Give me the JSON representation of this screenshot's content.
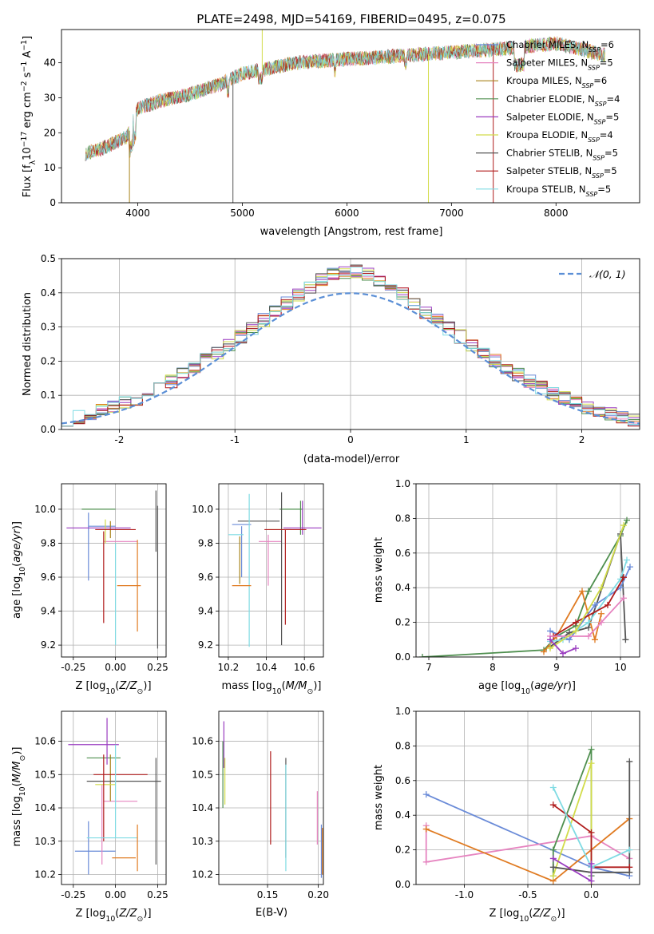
{
  "title": "PLATE=2498, MJD=54169, FIBERID=0495, z=0.075",
  "colors": {
    "Chabrier MILES": "#6a8bd8",
    "Salpeter MILES": "#e684c0",
    "Kroupa MILES": "#a8831a",
    "Chabrier ELODIE": "#4f8f4f",
    "Salpeter ELODIE": "#9a3cc0",
    "Kroupa ELODIE": "#d2dc4a",
    "Chabrier STELIB": "#555555",
    "Salpeter STELIB": "#b01c1c",
    "Kroupa STELIB": "#7fdbe3",
    "orange": "#e07b22",
    "gaussian": "#5b8fd6"
  },
  "chart_data": [
    {
      "id": "spectrum",
      "type": "line",
      "xlabel": "wavelength [Angstrom, rest frame]",
      "ylabel": "Flux [fλ10⁻¹⁷ erg cm⁻² s⁻¹ A⁻¹]",
      "xlim": [
        3270,
        8800
      ],
      "ylim": [
        0,
        49.5
      ],
      "xticks": [
        4000,
        5000,
        6000,
        7000,
        8000
      ],
      "yticks": [
        0,
        10,
        20,
        30,
        40
      ],
      "legend": [
        {
          "label": "Chabrier MILES, N",
          "sub": "SSP",
          "tail": "=6",
          "color": "#6a8bd8"
        },
        {
          "label": "Salpeter MILES, N",
          "sub": "SSP",
          "tail": "=5",
          "color": "#e684c0"
        },
        {
          "label": "Kroupa MILES, N",
          "sub": "SSP",
          "tail": "=6",
          "color": "#a8831a"
        },
        {
          "label": "Chabrier ELODIE, N",
          "sub": "SSP",
          "tail": "=4",
          "color": "#4f8f4f"
        },
        {
          "label": "Salpeter ELODIE, N",
          "sub": "SSP",
          "tail": "=5",
          "color": "#9a3cc0"
        },
        {
          "label": "Kroupa ELODIE, N",
          "sub": "SSP",
          "tail": "=4",
          "color": "#d2dc4a"
        },
        {
          "label": "Chabrier STELIB, N",
          "sub": "SSP",
          "tail": "=5",
          "color": "#555555"
        },
        {
          "label": "Salpeter STELIB, N",
          "sub": "SSP",
          "tail": "=5",
          "color": "#b01c1c"
        },
        {
          "label": "Kroupa STELIB, N",
          "sub": "SSP",
          "tail": "=5",
          "color": "#7fdbe3"
        }
      ],
      "continuum": [
        [
          3500,
          14
        ],
        [
          3700,
          16
        ],
        [
          3900,
          19
        ],
        [
          4000,
          27
        ],
        [
          4200,
          29
        ],
        [
          4500,
          31
        ],
        [
          4800,
          34
        ],
        [
          5000,
          37
        ],
        [
          5200,
          38
        ],
        [
          5500,
          40
        ],
        [
          6000,
          41
        ],
        [
          6500,
          42
        ],
        [
          7000,
          43
        ],
        [
          7500,
          44
        ],
        [
          8000,
          45.5
        ],
        [
          8500,
          42
        ]
      ],
      "spikes": [
        [
          3920,
          0
        ],
        [
          4910,
          0
        ],
        [
          5190,
          49.5
        ],
        [
          6780,
          0
        ],
        [
          7400,
          0
        ]
      ]
    },
    {
      "id": "residuals",
      "type": "line",
      "xlabel": "(data-model)/error",
      "ylabel": "Normed distribution",
      "xlim": [
        -2.5,
        2.5
      ],
      "ylim": [
        0,
        0.5
      ],
      "xticks": [
        -2,
        -1,
        0,
        1,
        2
      ],
      "yticks": [
        0.0,
        0.1,
        0.2,
        0.3,
        0.4,
        0.5
      ],
      "legend": "N(0,1)"
    },
    {
      "id": "age_vs_Z",
      "type": "scatter",
      "xlabel": "Z [log10(Z/Z☉)]",
      "ylabel": "age  [log10(age/yr)]",
      "xlim": [
        -0.32,
        0.3
      ],
      "ylim": [
        9.13,
        10.15
      ],
      "xticks": [
        -0.25,
        0.0,
        0.25
      ],
      "yticks": [
        9.2,
        9.4,
        9.6,
        9.8,
        10.0
      ],
      "points": [
        {
          "c": "Chabrier MILES",
          "x": -0.08,
          "y": 9.9,
          "xe": 0.08,
          "ye": 0.0
        },
        {
          "c": "Chabrier MILES",
          "x": -0.16,
          "y": 9.78,
          "xe": 0.0,
          "ye": 0.2
        },
        {
          "c": "Salpeter MILES",
          "x": 0.03,
          "y": 9.81,
          "xe": 0.1,
          "ye": 0.0
        },
        {
          "c": "Kroupa MILES",
          "x": -0.03,
          "y": 9.88,
          "xe": 0.0,
          "ye": 0.05
        },
        {
          "c": "Chabrier ELODIE",
          "x": -0.1,
          "y": 10.0,
          "xe": 0.1,
          "ye": 0.0
        },
        {
          "c": "Salpeter ELODIE",
          "x": -0.1,
          "y": 9.89,
          "xe": 0.19,
          "ye": 0.0
        },
        {
          "c": "Kroupa ELODIE",
          "x": -0.06,
          "y": 9.87,
          "xe": 0.0,
          "ye": 0.07
        },
        {
          "c": "Chabrier STELIB",
          "x": 0.24,
          "y": 9.93,
          "xe": 0.0,
          "ye": 0.18
        },
        {
          "c": "Chabrier STELIB",
          "x": 0.25,
          "y": 9.6,
          "xe": 0.0,
          "ye": 0.42
        },
        {
          "c": "Salpeter STELIB",
          "x": -0.07,
          "y": 9.6,
          "xe": 0.0,
          "ye": 0.27
        },
        {
          "c": "Salpeter STELIB",
          "x": 0.0,
          "y": 9.88,
          "xe": 0.12,
          "ye": 0.0
        },
        {
          "c": "Kroupa STELIB",
          "x": 0.0,
          "y": 9.5,
          "xe": 0.0,
          "ye": 0.3
        },
        {
          "c": "orange",
          "x": 0.13,
          "y": 9.55,
          "xe": 0.0,
          "ye": 0.27
        },
        {
          "c": "orange",
          "x": 0.08,
          "y": 9.55,
          "xe": 0.07,
          "ye": 0.0
        }
      ]
    },
    {
      "id": "age_vs_mass",
      "type": "scatter",
      "xlabel": "mass [log10(M/M☉)]",
      "xlim": [
        10.15,
        10.7
      ],
      "ylim": [
        9.13,
        10.15
      ],
      "xticks": [
        10.2,
        10.4,
        10.6
      ],
      "yticks": [
        9.2,
        9.4,
        9.6,
        9.8,
        10.0
      ],
      "points": [
        {
          "c": "Chabrier MILES",
          "x": 10.27,
          "y": 9.91,
          "xe": 0.05,
          "ye": 0.0
        },
        {
          "c": "Chabrier MILES",
          "x": 10.27,
          "y": 9.75,
          "xe": 0.0,
          "ye": 0.15
        },
        {
          "c": "Salpeter MILES",
          "x": 10.42,
          "y": 9.81,
          "xe": 0.06,
          "ye": 0.0
        },
        {
          "c": "Salpeter MILES",
          "x": 10.41,
          "y": 9.7,
          "xe": 0.0,
          "ye": 0.15
        },
        {
          "c": "Kroupa MILES",
          "x": 10.26,
          "y": 9.7,
          "xe": 0.0,
          "ye": 0.14
        },
        {
          "c": "Chabrier ELODIE",
          "x": 10.53,
          "y": 10.0,
          "xe": 0.06,
          "ye": 0.0
        },
        {
          "c": "Chabrier ELODIE",
          "x": 10.58,
          "y": 9.95,
          "xe": 0.0,
          "ye": 0.1
        },
        {
          "c": "Salpeter ELODIE",
          "x": 10.59,
          "y": 9.89,
          "xe": 0.1,
          "ye": 0.0
        },
        {
          "c": "Salpeter ELODIE",
          "x": 10.59,
          "y": 9.95,
          "xe": 0.0,
          "ye": 0.1
        },
        {
          "c": "Kroupa ELODIE",
          "x": 10.47,
          "y": 9.88,
          "xe": 0.06,
          "ye": 0.0
        },
        {
          "c": "Chabrier STELIB",
          "x": 10.36,
          "y": 9.93,
          "xe": 0.11,
          "ye": 0.0
        },
        {
          "c": "Chabrier STELIB",
          "x": 10.48,
          "y": 9.65,
          "xe": 0.0,
          "ye": 0.45
        },
        {
          "c": "Salpeter STELIB",
          "x": 10.5,
          "y": 9.88,
          "xe": 0.11,
          "ye": 0.0
        },
        {
          "c": "Salpeter STELIB",
          "x": 10.5,
          "y": 9.6,
          "xe": 0.0,
          "ye": 0.28
        },
        {
          "c": "Kroupa STELIB",
          "x": 10.31,
          "y": 9.64,
          "xe": 0.0,
          "ye": 0.45
        },
        {
          "c": "Kroupa STELIB",
          "x": 10.24,
          "y": 9.85,
          "xe": 0.04,
          "ye": 0.0
        },
        {
          "c": "orange",
          "x": 10.27,
          "y": 9.55,
          "xe": 0.05,
          "ye": 0.0
        }
      ]
    },
    {
      "id": "massweight_vs_age",
      "type": "line",
      "xlabel": "age  [log10(age/yr)]",
      "ylabel": "mass weight",
      "xlim": [
        6.8,
        10.3
      ],
      "ylim": [
        0,
        1.0
      ],
      "xticks": [
        7,
        8,
        9,
        10
      ],
      "yticks": [
        0.0,
        0.2,
        0.4,
        0.6,
        0.8,
        1.0
      ],
      "series": [
        {
          "c": "Chabrier ELODIE",
          "x": [
            6.9,
            8.8,
            9.0,
            9.3,
            9.5,
            10.0,
            10.1
          ],
          "y": [
            0.0,
            0.04,
            0.12,
            0.18,
            0.38,
            0.7,
            0.79
          ]
        },
        {
          "c": "Chabrier STELIB",
          "x": [
            8.9,
            9.2,
            9.5,
            10.0,
            10.08
          ],
          "y": [
            0.06,
            0.14,
            0.17,
            0.71,
            0.1
          ]
        },
        {
          "c": "orange",
          "x": [
            8.8,
            9.0,
            9.4,
            9.6,
            9.7
          ],
          "y": [
            0.03,
            0.12,
            0.38,
            0.1,
            0.25
          ]
        },
        {
          "c": "Chabrier MILES",
          "x": [
            8.9,
            9.2,
            9.6,
            10.0,
            10.15
          ],
          "y": [
            0.15,
            0.1,
            0.3,
            0.4,
            0.52
          ]
        },
        {
          "c": "Kroupa STELIB",
          "x": [
            8.9,
            9.1,
            9.5,
            10.0,
            10.1
          ],
          "y": [
            0.09,
            0.1,
            0.2,
            0.45,
            0.56
          ]
        },
        {
          "c": "Salpeter STELIB",
          "x": [
            8.95,
            9.3,
            9.8,
            10.05
          ],
          "y": [
            0.12,
            0.2,
            0.3,
            0.46
          ]
        },
        {
          "c": "Salpeter MILES",
          "x": [
            8.9,
            9.5,
            9.7,
            10.05
          ],
          "y": [
            0.12,
            0.12,
            0.2,
            0.34
          ]
        },
        {
          "c": "Kroupa ELODIE",
          "x": [
            8.9,
            9.3,
            9.7,
            10.05
          ],
          "y": [
            0.05,
            0.15,
            0.4,
            0.76
          ]
        },
        {
          "c": "Salpeter ELODIE",
          "x": [
            8.9,
            9.1,
            9.3
          ],
          "y": [
            0.1,
            0.02,
            0.05
          ]
        }
      ]
    },
    {
      "id": "mass_vs_Z",
      "type": "scatter",
      "xlabel": "Z [log10(Z/Z☉)]",
      "ylabel": "mass [log10(M/M☉)]",
      "xlim": [
        -0.32,
        0.3
      ],
      "ylim": [
        10.17,
        10.69
      ],
      "xticks": [
        -0.25,
        0.0,
        0.25
      ],
      "yticks": [
        10.2,
        10.3,
        10.4,
        10.5,
        10.6
      ],
      "points": [
        {
          "c": "Chabrier MILES",
          "x": -0.16,
          "y": 10.28,
          "xe": 0.0,
          "ye": 0.08
        },
        {
          "c": "Chabrier MILES",
          "x": -0.12,
          "y": 10.27,
          "xe": 0.12,
          "ye": 0.0
        },
        {
          "c": "Salpeter MILES",
          "x": 0.03,
          "y": 10.42,
          "xe": 0.1,
          "ye": 0.0
        },
        {
          "c": "Salpeter MILES",
          "x": -0.08,
          "y": 10.35,
          "xe": 0.0,
          "ye": 0.12
        },
        {
          "c": "Kroupa MILES",
          "x": -0.03,
          "y": 10.49,
          "xe": 0.0,
          "ye": 0.07
        },
        {
          "c": "Chabrier ELODIE",
          "x": -0.07,
          "y": 10.55,
          "xe": 0.1,
          "ye": 0.0
        },
        {
          "c": "Salpeter ELODIE",
          "x": -0.13,
          "y": 10.59,
          "xe": 0.15,
          "ye": 0.0
        },
        {
          "c": "Salpeter ELODIE",
          "x": -0.05,
          "y": 10.6,
          "xe": 0.0,
          "ye": 0.07
        },
        {
          "c": "Kroupa ELODIE",
          "x": -0.06,
          "y": 10.47,
          "xe": 0.06,
          "ye": 0.0
        },
        {
          "c": "Chabrier STELIB",
          "x": 0.05,
          "y": 10.48,
          "xe": 0.22,
          "ye": 0.0
        },
        {
          "c": "Chabrier STELIB",
          "x": 0.24,
          "y": 10.39,
          "xe": 0.0,
          "ye": 0.16
        },
        {
          "c": "Salpeter STELIB",
          "x": 0.03,
          "y": 10.5,
          "xe": 0.16,
          "ye": 0.0
        },
        {
          "c": "Salpeter STELIB",
          "x": -0.07,
          "y": 10.43,
          "xe": 0.0,
          "ye": 0.13
        },
        {
          "c": "Kroupa STELIB",
          "x": -0.02,
          "y": 10.31,
          "xe": 0.15,
          "ye": 0.0
        },
        {
          "c": "Kroupa STELIB",
          "x": 0.0,
          "y": 10.45,
          "xe": 0.0,
          "ye": 0.14
        },
        {
          "c": "orange",
          "x": 0.05,
          "y": 10.25,
          "xe": 0.07,
          "ye": 0.0
        },
        {
          "c": "orange",
          "x": 0.13,
          "y": 10.28,
          "xe": 0.0,
          "ye": 0.07
        }
      ]
    },
    {
      "id": "mass_vs_EBV",
      "type": "scatter",
      "xlabel": "E(B-V)",
      "xlim": [
        0.102,
        0.205
      ],
      "ylim": [
        10.17,
        10.69
      ],
      "xticks": [
        0.15,
        0.2
      ],
      "yticks": [
        10.2,
        10.3,
        10.4,
        10.5,
        10.6
      ],
      "points": [
        {
          "c": "Salpeter ELODIE",
          "x": 0.107,
          "y": 10.59,
          "xe": 0.0,
          "ye": 0.07
        },
        {
          "c": "Chabrier ELODIE",
          "x": 0.106,
          "y": 10.5,
          "xe": 0.0,
          "ye": 0.1
        },
        {
          "c": "Kroupa ELODIE",
          "x": 0.108,
          "y": 10.48,
          "xe": 0.0,
          "ye": 0.07
        },
        {
          "c": "Salpeter STELIB",
          "x": 0.153,
          "y": 10.43,
          "xe": 0.0,
          "ye": 0.14
        },
        {
          "c": "Chabrier STELIB",
          "x": 0.168,
          "y": 10.4,
          "xe": 0.0,
          "ye": 0.15
        },
        {
          "c": "Kroupa STELIB",
          "x": 0.168,
          "y": 10.37,
          "xe": 0.0,
          "ye": 0.16
        },
        {
          "c": "Salpeter MILES",
          "x": 0.199,
          "y": 10.37,
          "xe": 0.0,
          "ye": 0.08
        },
        {
          "c": "Chabrier MILES",
          "x": 0.203,
          "y": 10.27,
          "xe": 0.0,
          "ye": 0.08
        },
        {
          "c": "orange",
          "x": 0.204,
          "y": 10.27,
          "xe": 0.0,
          "ye": 0.07
        }
      ]
    },
    {
      "id": "massweight_vs_Z",
      "type": "line",
      "xlabel": "Z [log10(Z/Z☉)]",
      "ylabel": "mass weight",
      "xlim": [
        -1.38,
        0.38
      ],
      "ylim": [
        0,
        1.0
      ],
      "xticks": [
        -1.0,
        -0.5,
        0.0
      ],
      "yticks": [
        0.0,
        0.2,
        0.4,
        0.6,
        0.8,
        1.0
      ],
      "series": [
        {
          "c": "Chabrier MILES",
          "x": [
            -1.3,
            0.0,
            0.3
          ],
          "y": [
            0.52,
            0.1,
            0.05
          ]
        },
        {
          "c": "Salpeter MILES",
          "x": [
            -1.3,
            -1.3,
            0.0,
            0.3
          ],
          "y": [
            0.34,
            0.13,
            0.28,
            0.15
          ]
        },
        {
          "c": "orange",
          "x": [
            -1.3,
            -0.3,
            0.3
          ],
          "y": [
            0.32,
            0.02,
            0.38
          ]
        },
        {
          "c": "Chabrier ELODIE",
          "x": [
            -0.3,
            -0.3,
            0.0,
            0.0
          ],
          "y": [
            0.05,
            0.2,
            0.78,
            0.05
          ]
        },
        {
          "c": "Kroupa ELODIE",
          "x": [
            -0.3,
            0.0,
            0.0
          ],
          "y": [
            0.05,
            0.7,
            0.0
          ]
        },
        {
          "c": "Chabrier STELIB",
          "x": [
            -0.3,
            0.0,
            0.3,
            0.3
          ],
          "y": [
            0.1,
            0.07,
            0.07,
            0.71
          ]
        },
        {
          "c": "Salpeter STELIB",
          "x": [
            -0.3,
            0.0,
            0.0,
            0.3
          ],
          "y": [
            0.46,
            0.3,
            0.1,
            0.1
          ]
        },
        {
          "c": "Kroupa STELIB",
          "x": [
            -0.3,
            0.0,
            0.3
          ],
          "y": [
            0.56,
            0.1,
            0.2
          ]
        },
        {
          "c": "Salpeter ELODIE",
          "x": [
            -0.3,
            0.0,
            0.0
          ],
          "y": [
            0.15,
            0.02,
            0.12
          ]
        }
      ]
    }
  ]
}
